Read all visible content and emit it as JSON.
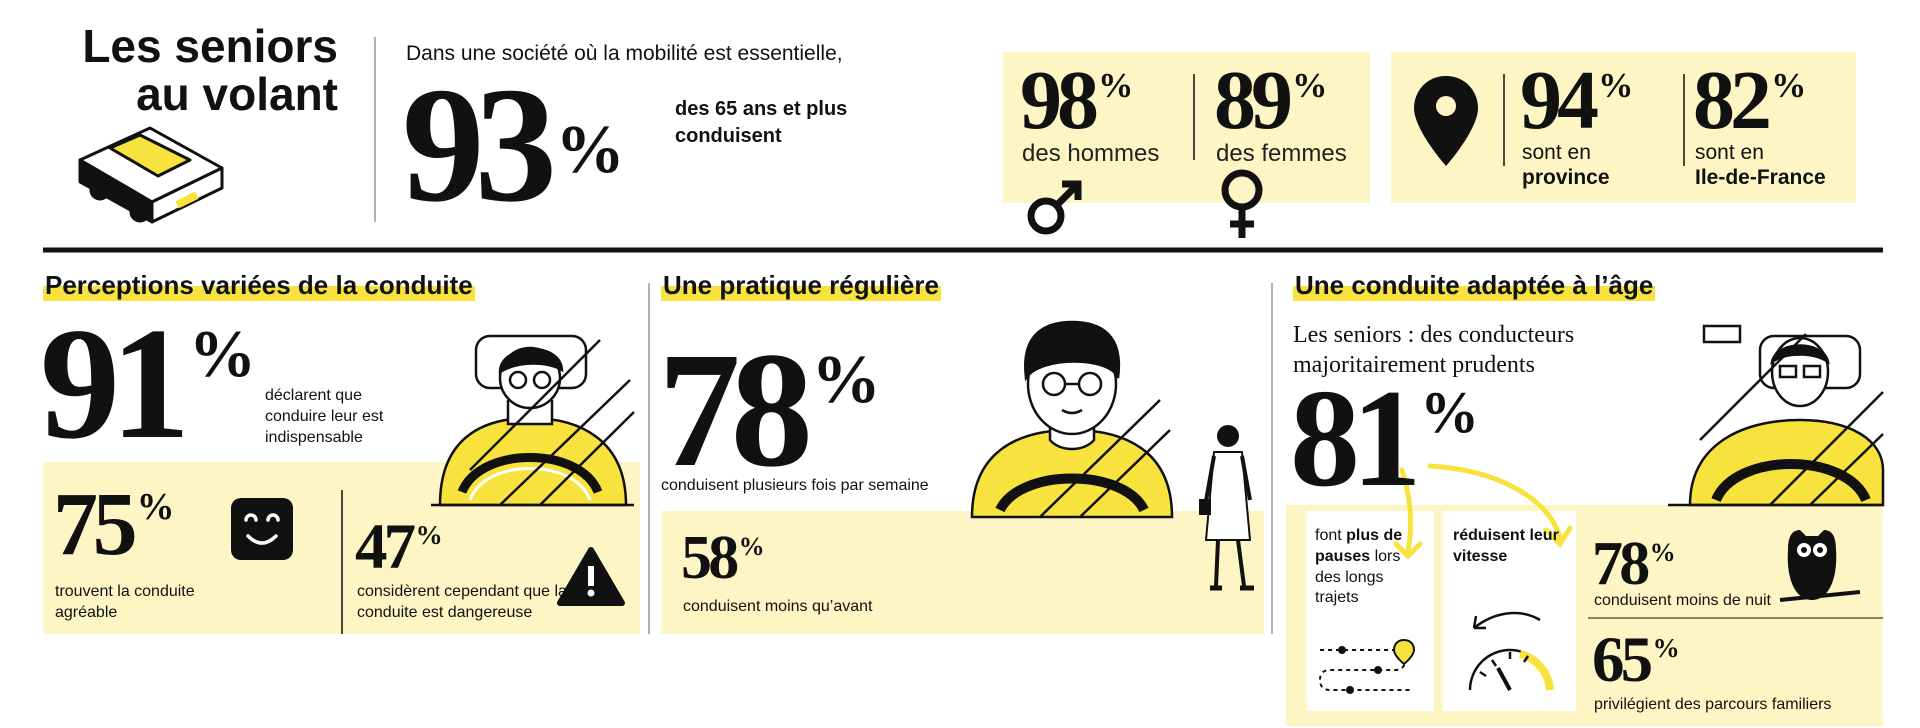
{
  "header": {
    "title": "Les seniors au volant",
    "intro": "Dans une société où la mobilité est essentielle,",
    "main_stat": {
      "value": 93,
      "unit": "%",
      "label": "des 65 ans et plus conduisent"
    }
  },
  "gender_stats": [
    {
      "value": 98,
      "unit": "%",
      "label": "des hommes"
    },
    {
      "value": 89,
      "unit": "%",
      "label": "des femmes"
    }
  ],
  "region_stats": [
    {
      "value": 94,
      "unit": "%",
      "label": "sont en",
      "label_bold": "province"
    },
    {
      "value": 82,
      "unit": "%",
      "label": "sont en",
      "label_bold": "Ile-de-France"
    }
  ],
  "sections": [
    {
      "title": "Perceptions variées de la conduite",
      "stats": [
        {
          "value": 91,
          "unit": "%",
          "label": "déclarent que conduire leur est indispensable"
        },
        {
          "value": 75,
          "unit": "%",
          "label": "trouvent la conduite agréable"
        },
        {
          "value": 47,
          "unit": "%",
          "label": "considèrent cependant que la conduite est dangereuse"
        }
      ]
    },
    {
      "title": "Une pratique régulière",
      "stats": [
        {
          "value": 78,
          "unit": "%",
          "label": "conduisent plusieurs fois par semaine"
        },
        {
          "value": 58,
          "unit": "%",
          "label": "conduisent moins qu’avant"
        }
      ]
    },
    {
      "title": "Une conduite adaptée à l’âge",
      "subtitle": "Les seniors : des conducteurs majoritairement prudents",
      "stats": [
        {
          "value": 81,
          "unit": "%"
        },
        {
          "value": 78,
          "unit": "%",
          "label": "conduisent moins de nuit"
        },
        {
          "value": 65,
          "unit": "%",
          "label": "privilégient des parcours familiers"
        }
      ],
      "behaviors": [
        {
          "lead": "font",
          "bold": "plus de pauses",
          "rest": "lors des longs trajets"
        },
        {
          "bold": "réduisent leur vitesse"
        }
      ]
    }
  ]
}
